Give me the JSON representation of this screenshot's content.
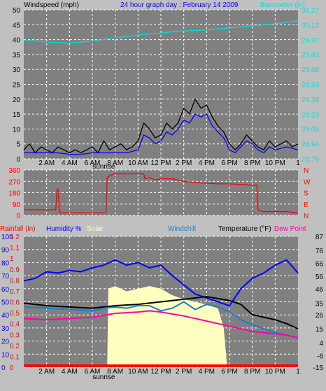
{
  "header": {
    "wind_title": "Windspeed (mph)",
    "center_title": "24 hour graph day : February 14 2009",
    "baro_title": "Barometer (in)"
  },
  "colors": {
    "background": "#c0c0c0",
    "plot": "#808080",
    "wind": "#000000",
    "gust_avg": "#0000ff",
    "baro": "#00e0e0",
    "direction": "#ff0000",
    "humidity": "#0000ff",
    "solar": "#ffffc0",
    "windchill": "#1a7fd0",
    "temperature": "#000000",
    "dewpoint": "#ff00aa",
    "rain": "#ff0000"
  },
  "chart_data": [
    {
      "type": "line",
      "name": "wind-barometer",
      "yleft_ticks": [
        0,
        5,
        10,
        15,
        20,
        25,
        30,
        35,
        40,
        45,
        50
      ],
      "ylim_left": [
        0,
        50
      ],
      "yright_ticks": [
        "28.79",
        "28.94",
        "29.09",
        "29.23",
        "29.38",
        "29.53",
        "29.68",
        "29.83",
        "29.97",
        "30.12",
        "30.27"
      ],
      "ylim_right": [
        28.79,
        30.27
      ],
      "x_labels": [
        "2 AM",
        "4 AM",
        "6 AM",
        "8 AM",
        "10 AM",
        "12 PM",
        "2 PM",
        "4 PM",
        "6 PM",
        "8 PM",
        "10 PM"
      ],
      "x_label_hours": [
        2,
        4,
        6,
        8,
        10,
        12,
        14,
        16,
        18,
        20,
        22
      ],
      "x_end_label": "1",
      "sunrise_label": "sunrise",
      "sunrise_hour": 7,
      "xlim_hours": [
        0,
        24
      ],
      "series": [
        {
          "color_key": "wind",
          "axis": "left",
          "points": [
            [
              0,
              3
            ],
            [
              0.5,
              5
            ],
            [
              1,
              2
            ],
            [
              1.5,
              4
            ],
            [
              2,
              3
            ],
            [
              2.5,
              2
            ],
            [
              3,
              4
            ],
            [
              3.5,
              3
            ],
            [
              4,
              2
            ],
            [
              4.5,
              3
            ],
            [
              5,
              2
            ],
            [
              5.5,
              3
            ],
            [
              6,
              4
            ],
            [
              6.5,
              2
            ],
            [
              7,
              6
            ],
            [
              7.5,
              3
            ],
            [
              8,
              4
            ],
            [
              8.5,
              5
            ],
            [
              9,
              3
            ],
            [
              9.5,
              4
            ],
            [
              10,
              6
            ],
            [
              10.5,
              12
            ],
            [
              11,
              10
            ],
            [
              11.5,
              7
            ],
            [
              12,
              8
            ],
            [
              12.5,
              12
            ],
            [
              13,
              10
            ],
            [
              13.5,
              12
            ],
            [
              14,
              17
            ],
            [
              14.5,
              15
            ],
            [
              15,
              20
            ],
            [
              15.5,
              17
            ],
            [
              16,
              18
            ],
            [
              16.5,
              14
            ],
            [
              17,
              11
            ],
            [
              17.5,
              9
            ],
            [
              18,
              5
            ],
            [
              18.5,
              3
            ],
            [
              19,
              5
            ],
            [
              19.5,
              8
            ],
            [
              20,
              6
            ],
            [
              20.5,
              4
            ],
            [
              21,
              3
            ],
            [
              21.5,
              6
            ],
            [
              22,
              4
            ],
            [
              22.5,
              5
            ],
            [
              23,
              6
            ],
            [
              23.5,
              4
            ],
            [
              24,
              5
            ]
          ]
        },
        {
          "color_key": "gust_avg",
          "axis": "left",
          "points": [
            [
              0,
              2
            ],
            [
              1,
              2
            ],
            [
              2,
              2
            ],
            [
              3,
              2
            ],
            [
              4,
              1.5
            ],
            [
              5,
              1.5
            ],
            [
              6,
              2
            ],
            [
              7,
              2
            ],
            [
              8,
              2
            ],
            [
              9,
              2
            ],
            [
              10,
              3
            ],
            [
              10.5,
              8
            ],
            [
              11,
              7
            ],
            [
              11.5,
              5
            ],
            [
              12,
              6
            ],
            [
              12.5,
              9
            ],
            [
              13,
              8
            ],
            [
              13.5,
              10
            ],
            [
              14,
              13
            ],
            [
              14.5,
              12
            ],
            [
              15,
              15
            ],
            [
              15.5,
              14
            ],
            [
              16,
              15
            ],
            [
              16.5,
              11
            ],
            [
              17,
              9
            ],
            [
              17.5,
              7
            ],
            [
              18,
              3
            ],
            [
              18.5,
              2
            ],
            [
              19,
              4
            ],
            [
              19.5,
              6
            ],
            [
              20,
              5
            ],
            [
              20.5,
              3
            ],
            [
              21,
              2
            ],
            [
              21.5,
              4
            ],
            [
              22,
              3
            ],
            [
              23,
              4
            ],
            [
              24,
              3
            ]
          ]
        },
        {
          "color_key": "baro",
          "axis": "right",
          "points": [
            [
              0,
              29.97
            ],
            [
              2,
              29.95
            ],
            [
              4,
              29.94
            ],
            [
              6,
              29.96
            ],
            [
              8,
              29.99
            ],
            [
              10,
              30.02
            ],
            [
              12,
              30.04
            ],
            [
              14,
              30.06
            ],
            [
              16,
              30.07
            ],
            [
              18,
              30.09
            ],
            [
              20,
              30.11
            ],
            [
              22,
              30.13
            ],
            [
              24,
              30.16
            ]
          ]
        }
      ]
    },
    {
      "type": "line",
      "name": "wind-direction",
      "yleft_ticks": [
        0,
        90,
        180,
        270,
        360
      ],
      "ylim_left": [
        0,
        360
      ],
      "compass_labels": [
        "N",
        "W",
        "S",
        "E",
        "N"
      ],
      "series": [
        {
          "color_key": "direction",
          "points": [
            [
              0,
              45
            ],
            [
              2.8,
              45
            ],
            [
              2.9,
              200
            ],
            [
              3.0,
              210
            ],
            [
              3.1,
              40
            ],
            [
              3.2,
              20
            ],
            [
              6,
              20
            ],
            [
              7.2,
              20
            ],
            [
              7.3,
              300
            ],
            [
              7.6,
              320
            ],
            [
              8,
              330
            ],
            [
              9,
              330
            ],
            [
              10.5,
              330
            ],
            [
              10.6,
              290
            ],
            [
              11,
              300
            ],
            [
              11.5,
              280
            ],
            [
              12,
              290
            ],
            [
              13,
              290
            ],
            [
              14,
              270
            ],
            [
              15,
              260
            ],
            [
              16,
              255
            ],
            [
              17,
              250
            ],
            [
              18,
              250
            ],
            [
              19,
              245
            ],
            [
              20,
              240
            ],
            [
              20.4,
              240
            ],
            [
              20.5,
              40
            ],
            [
              21,
              30
            ],
            [
              23,
              30
            ],
            [
              24,
              20
            ]
          ]
        }
      ]
    },
    {
      "type": "line",
      "name": "rain-humidity-solar-temperature",
      "rain_ticks": [
        "0",
        "0.1",
        "0.2",
        "0.3",
        "0.4",
        "0.5",
        "0.6",
        "0.7",
        "0.8",
        "0.9",
        "1",
        "1.1",
        "1.2"
      ],
      "humidity_ticks": [
        0,
        10,
        20,
        30,
        40,
        50,
        60,
        70,
        80,
        90,
        100
      ],
      "ylim_humidity": [
        0,
        100
      ],
      "temp_ticks": [
        -15,
        -6,
        4,
        15,
        26,
        35,
        46,
        56,
        66,
        76,
        87
      ],
      "ylim_temp": [
        -15,
        87
      ],
      "labels": {
        "rain": "Rainfall (in)",
        "humidity": "Humidity %",
        "solar": "Solar",
        "windchill": "Windchill",
        "temperature": "Temperature (°F)",
        "dewpoint": "Dew Point"
      },
      "series": [
        {
          "color_key": "humidity",
          "axis": "humidity",
          "points": [
            [
              0,
              66
            ],
            [
              1,
              68
            ],
            [
              2,
              73
            ],
            [
              3,
              72
            ],
            [
              4,
              74
            ],
            [
              5,
              73
            ],
            [
              6,
              76
            ],
            [
              7,
              78
            ],
            [
              8,
              82
            ],
            [
              9,
              78
            ],
            [
              10,
              80
            ],
            [
              11,
              76
            ],
            [
              12,
              78
            ],
            [
              13,
              70
            ],
            [
              14,
              63
            ],
            [
              15,
              56
            ],
            [
              16,
              53
            ],
            [
              17,
              50
            ],
            [
              18,
              47
            ],
            [
              19,
              60
            ],
            [
              20,
              68
            ],
            [
              21,
              72
            ],
            [
              22,
              78
            ],
            [
              23,
              82
            ],
            [
              24,
              72
            ]
          ]
        },
        {
          "color_key": "temperature",
          "axis": "temp",
          "points": [
            [
              0,
              35
            ],
            [
              2,
              33
            ],
            [
              4,
              32
            ],
            [
              6,
              31
            ],
            [
              8,
              33
            ],
            [
              10,
              34
            ],
            [
              12,
              36
            ],
            [
              14,
              38
            ],
            [
              16,
              40
            ],
            [
              18,
              37
            ],
            [
              19,
              34
            ],
            [
              20,
              26
            ],
            [
              21,
              24
            ],
            [
              22,
              22
            ],
            [
              23,
              19
            ],
            [
              24,
              15
            ]
          ]
        },
        {
          "color_key": "windchill",
          "axis": "temp",
          "points": [
            [
              0,
              32
            ],
            [
              2,
              31
            ],
            [
              4,
              30
            ],
            [
              6,
              29
            ],
            [
              7,
              31
            ],
            [
              8,
              32
            ],
            [
              9,
              31
            ],
            [
              10,
              33
            ],
            [
              11,
              33
            ],
            [
              12,
              29
            ],
            [
              13,
              31
            ],
            [
              14,
              36
            ],
            [
              15,
              30
            ],
            [
              16,
              34
            ],
            [
              17,
              32
            ],
            [
              18,
              28
            ],
            [
              19,
              22
            ],
            [
              20,
              18
            ],
            [
              21,
              15
            ],
            [
              22,
              12
            ],
            [
              23,
              10
            ],
            [
              24,
              8
            ]
          ]
        },
        {
          "color_key": "dewpoint",
          "axis": "temp",
          "points": [
            [
              0,
              23
            ],
            [
              2,
              22
            ],
            [
              4,
              23
            ],
            [
              6,
              24
            ],
            [
              8,
              27
            ],
            [
              10,
              28
            ],
            [
              11,
              29
            ],
            [
              12,
              28
            ],
            [
              14,
              25
            ],
            [
              16,
              21
            ],
            [
              17,
              19
            ],
            [
              18,
              17
            ],
            [
              19,
              15
            ],
            [
              20,
              13
            ],
            [
              22,
              11
            ],
            [
              23,
              10
            ],
            [
              24,
              8
            ]
          ]
        }
      ],
      "solar_level": [
        [
          0,
          0
        ],
        [
          7.3,
          0
        ],
        [
          7.4,
          0.6
        ],
        [
          8,
          0.62
        ],
        [
          9,
          0.58
        ],
        [
          10,
          0.6
        ],
        [
          11,
          0.62
        ],
        [
          12,
          0.6
        ],
        [
          13,
          0.55
        ],
        [
          14,
          0.52
        ],
        [
          15,
          0.5
        ],
        [
          16,
          0.48
        ],
        [
          17,
          0.45
        ],
        [
          17.5,
          0.3
        ],
        [
          17.8,
          0
        ],
        [
          24,
          0
        ]
      ]
    }
  ]
}
